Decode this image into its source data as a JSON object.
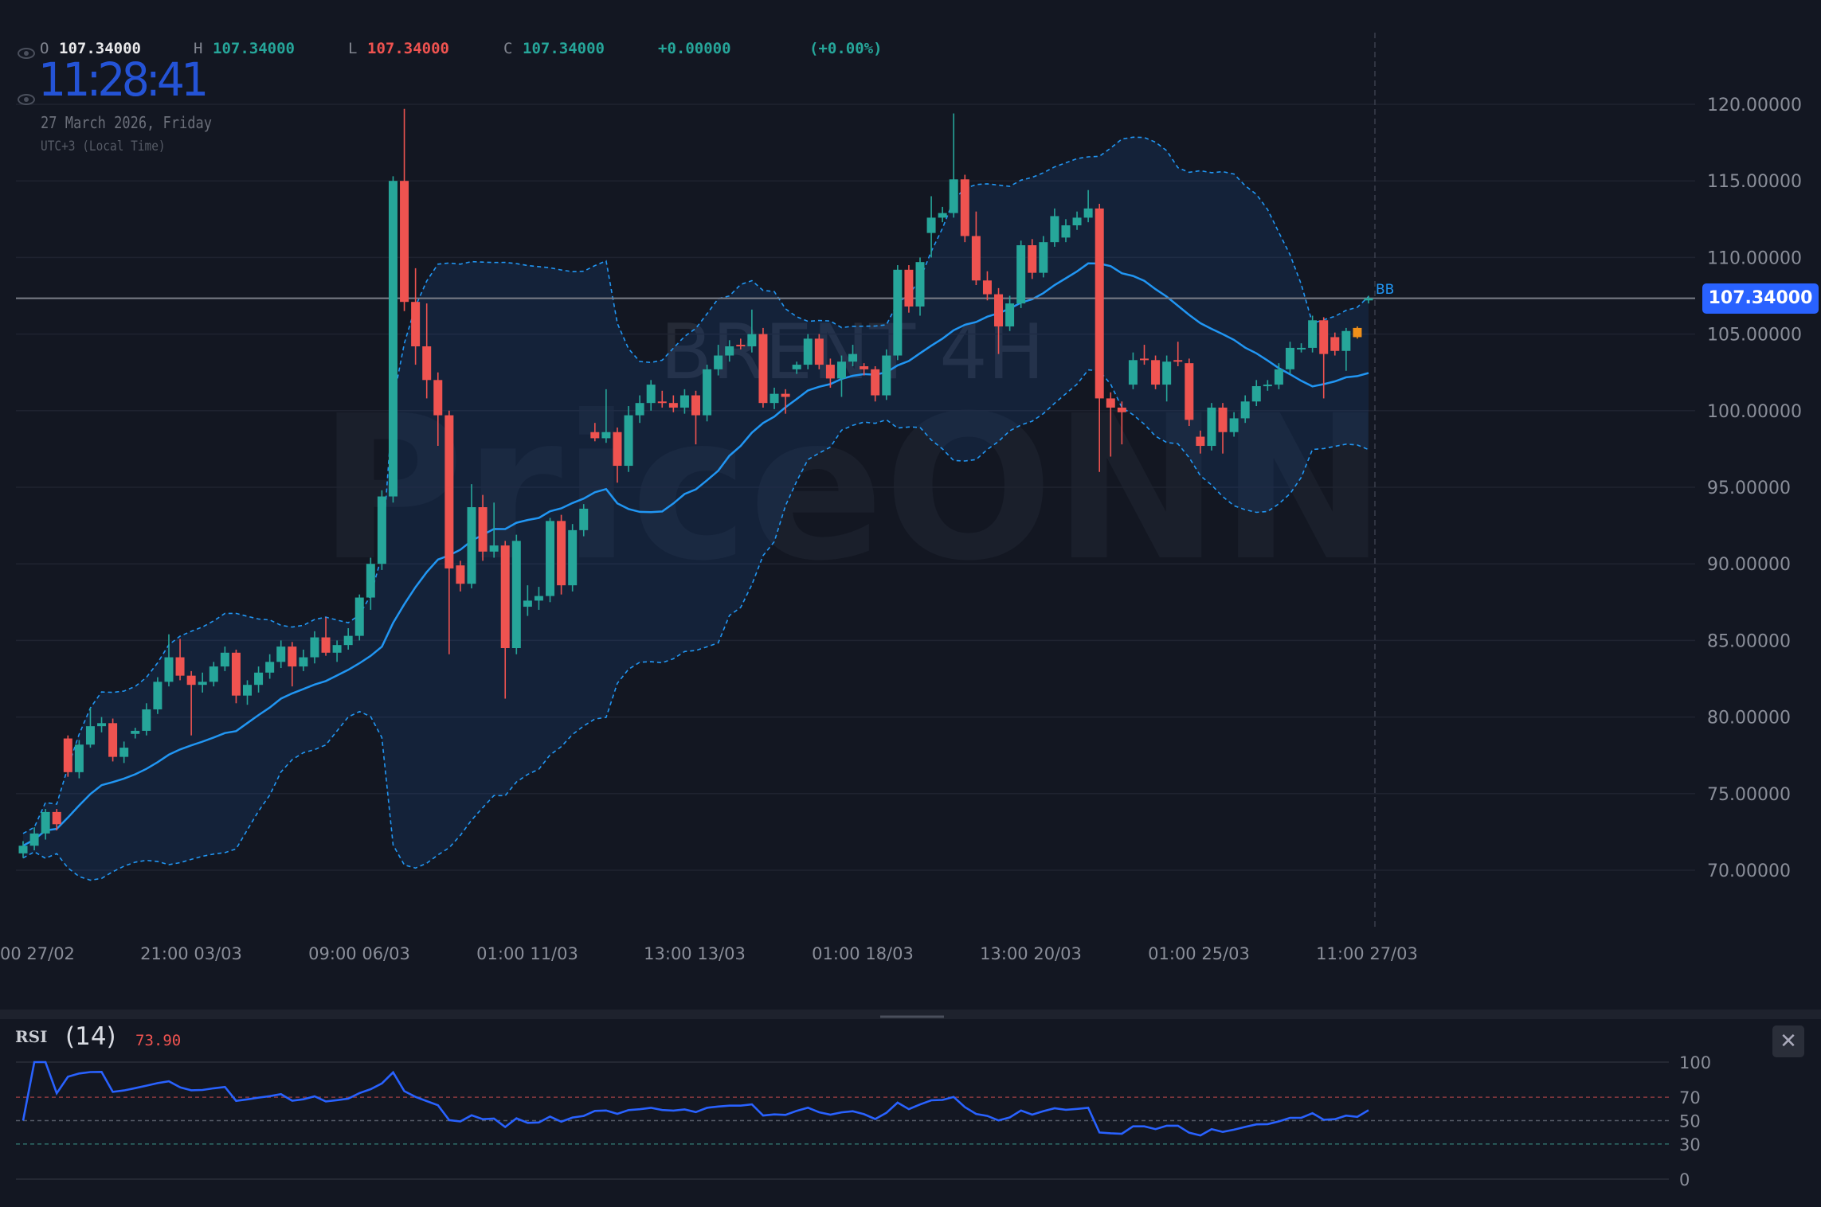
{
  "header": {
    "open_label": "O",
    "open": "107.34000",
    "high_label": "H",
    "high": "107.34000",
    "low_label": "L",
    "low": "107.34000",
    "close_label": "C",
    "close": "107.34000",
    "change": "+0.00000",
    "change_pct": "(+0.00%)",
    "clock": "11:28:41",
    "date": "27 March 2026, Friday",
    "timezone": "UTC+3 (Local Time)",
    "icons": [
      "eye-icon",
      "eye-icon"
    ]
  },
  "watermark": {
    "symbol": "BRENT 4H",
    "brand": "PriceONN"
  },
  "colors": {
    "up": "#26a69a",
    "down": "#ef5350",
    "highlight": "#f0901a",
    "bb": "#2196f3",
    "accent": "#2962ff",
    "rsi": "#2962ff",
    "background": "#131722"
  },
  "price_axis": {
    "ticks": [
      "120.00000",
      "115.00000",
      "110.00000",
      "105.00000",
      "100.00000",
      "95.00000",
      "90.00000",
      "85.00000",
      "80.00000",
      "75.00000",
      "70.00000"
    ],
    "current_price": "107.34000",
    "ylim": [
      65,
      120
    ]
  },
  "time_axis": {
    "ticks": [
      "00 27/02",
      "21:00 03/03",
      "09:00 06/03",
      "01:00 11/03",
      "13:00 13/03",
      "01:00 18/03",
      "13:00 20/03",
      "01:00 25/03",
      "11:00 27/03"
    ]
  },
  "indicator_label": "BB",
  "highlight_candle": 119,
  "candles": [
    [
      71.1,
      71.9,
      70.8,
      71.6
    ],
    [
      71.6,
      72.8,
      71.3,
      72.4
    ],
    [
      72.4,
      74.0,
      72.0,
      73.8
    ],
    [
      73.8,
      74.0,
      72.6,
      73.0
    ],
    [
      78.6,
      78.8,
      76.1,
      76.4
    ],
    [
      76.4,
      78.5,
      76.0,
      78.2
    ],
    [
      78.2,
      80.6,
      78.0,
      79.4
    ],
    [
      79.4,
      80.0,
      79.0,
      79.6
    ],
    [
      79.6,
      79.9,
      77.1,
      77.4
    ],
    [
      77.4,
      78.4,
      77.0,
      78.0
    ],
    [
      78.9,
      79.3,
      78.6,
      79.1
    ],
    [
      79.1,
      80.9,
      78.8,
      80.5
    ],
    [
      80.5,
      82.6,
      80.2,
      82.3
    ],
    [
      82.3,
      85.4,
      82.0,
      83.9
    ],
    [
      83.9,
      85.1,
      82.4,
      82.7
    ],
    [
      82.7,
      83.0,
      78.8,
      82.1
    ],
    [
      82.1,
      82.9,
      81.6,
      82.3
    ],
    [
      82.3,
      83.6,
      82.0,
      83.3
    ],
    [
      83.3,
      84.6,
      83.0,
      84.2
    ],
    [
      84.2,
      84.4,
      80.9,
      81.4
    ],
    [
      81.4,
      82.4,
      80.8,
      82.1
    ],
    [
      82.1,
      83.3,
      81.6,
      82.9
    ],
    [
      82.9,
      84.1,
      82.5,
      83.6
    ],
    [
      83.6,
      85.0,
      83.2,
      84.6
    ],
    [
      84.6,
      84.9,
      82.0,
      83.3
    ],
    [
      83.3,
      84.4,
      83.0,
      83.9
    ],
    [
      83.9,
      85.6,
      83.5,
      85.2
    ],
    [
      85.2,
      86.5,
      84.0,
      84.2
    ],
    [
      84.2,
      85.0,
      83.6,
      84.7
    ],
    [
      84.7,
      85.8,
      84.4,
      85.3
    ],
    [
      85.3,
      88.0,
      85.0,
      87.8
    ],
    [
      87.8,
      90.4,
      87.0,
      90.0
    ],
    [
      90.0,
      94.8,
      89.6,
      94.4
    ],
    [
      94.4,
      115.3,
      94.0,
      115.0
    ],
    [
      115.0,
      119.7,
      106.5,
      107.1
    ],
    [
      107.1,
      109.3,
      103.0,
      104.2
    ],
    [
      104.2,
      107.0,
      100.8,
      102.0
    ],
    [
      102.0,
      102.5,
      97.7,
      99.7
    ],
    [
      99.7,
      100.0,
      84.1,
      89.7
    ],
    [
      89.9,
      90.2,
      88.2,
      88.7
    ],
    [
      88.7,
      95.2,
      88.4,
      93.7
    ],
    [
      93.7,
      94.5,
      90.2,
      90.8
    ],
    [
      90.8,
      94.0,
      90.4,
      91.2
    ],
    [
      91.2,
      91.5,
      81.2,
      84.5
    ],
    [
      84.5,
      91.9,
      84.1,
      91.5
    ],
    [
      87.2,
      88.6,
      86.6,
      87.6
    ],
    [
      87.6,
      88.5,
      87.0,
      87.9
    ],
    [
      87.9,
      93.0,
      87.5,
      92.8
    ],
    [
      92.8,
      93.2,
      88.0,
      88.6
    ],
    [
      88.6,
      92.6,
      88.2,
      92.2
    ],
    [
      92.2,
      93.9,
      91.8,
      93.6
    ],
    [
      98.6,
      99.2,
      98.0,
      98.2
    ],
    [
      98.2,
      101.4,
      97.9,
      98.6
    ],
    [
      98.6,
      98.9,
      95.3,
      96.4
    ],
    [
      96.4,
      100.3,
      96.0,
      99.7
    ],
    [
      99.7,
      101.0,
      99.2,
      100.5
    ],
    [
      100.5,
      102.0,
      100.0,
      101.7
    ],
    [
      100.6,
      101.3,
      100.2,
      100.5
    ],
    [
      100.5,
      101.0,
      99.9,
      100.2
    ],
    [
      100.2,
      101.4,
      99.8,
      101.0
    ],
    [
      101.0,
      101.3,
      97.8,
      99.7
    ],
    [
      99.7,
      103.0,
      99.3,
      102.7
    ],
    [
      102.7,
      104.3,
      102.3,
      103.6
    ],
    [
      103.6,
      104.6,
      103.2,
      104.2
    ],
    [
      104.3,
      104.7,
      104.0,
      104.2
    ],
    [
      104.2,
      106.6,
      103.8,
      105.0
    ],
    [
      105.0,
      105.4,
      100.2,
      100.5
    ],
    [
      100.5,
      101.5,
      100.1,
      101.1
    ],
    [
      101.1,
      101.4,
      99.8,
      100.9
    ],
    [
      102.7,
      103.2,
      102.4,
      103.0
    ],
    [
      103.0,
      105.0,
      102.7,
      104.7
    ],
    [
      104.7,
      105.0,
      102.7,
      103.0
    ],
    [
      103.0,
      103.4,
      101.5,
      102.1
    ],
    [
      102.1,
      103.6,
      100.9,
      103.2
    ],
    [
      103.2,
      104.3,
      102.9,
      103.7
    ],
    [
      102.9,
      103.1,
      102.3,
      102.7
    ],
    [
      102.7,
      102.9,
      100.6,
      101.0
    ],
    [
      101.0,
      104.0,
      100.7,
      103.6
    ],
    [
      103.6,
      109.5,
      103.3,
      109.2
    ],
    [
      109.2,
      109.5,
      106.4,
      106.8
    ],
    [
      106.8,
      110.0,
      106.2,
      109.7
    ],
    [
      111.6,
      114.0,
      110.0,
      112.6
    ],
    [
      112.6,
      113.3,
      112.3,
      112.9
    ],
    [
      112.9,
      119.4,
      112.6,
      115.1
    ],
    [
      115.1,
      115.4,
      111.0,
      111.4
    ],
    [
      111.4,
      113.0,
      108.2,
      108.5
    ],
    [
      108.5,
      109.1,
      107.2,
      107.6
    ],
    [
      107.6,
      108.0,
      103.7,
      105.5
    ],
    [
      105.5,
      107.5,
      105.2,
      107.0
    ],
    [
      107.0,
      111.1,
      106.7,
      110.8
    ],
    [
      110.8,
      111.2,
      108.6,
      109.0
    ],
    [
      109.0,
      111.4,
      108.7,
      111.0
    ],
    [
      111.0,
      113.2,
      110.7,
      112.7
    ],
    [
      111.3,
      112.5,
      111.0,
      112.1
    ],
    [
      112.1,
      113.0,
      111.8,
      112.6
    ],
    [
      112.6,
      114.4,
      112.3,
      113.2
    ],
    [
      113.2,
      113.5,
      96.0,
      100.8
    ],
    [
      100.8,
      101.2,
      97.0,
      100.2
    ],
    [
      100.2,
      100.6,
      97.8,
      99.9
    ],
    [
      101.7,
      103.8,
      101.4,
      103.3
    ],
    [
      103.4,
      104.3,
      103.0,
      103.3
    ],
    [
      103.3,
      103.6,
      101.4,
      101.7
    ],
    [
      101.7,
      103.6,
      100.6,
      103.2
    ],
    [
      103.3,
      104.5,
      102.9,
      103.2
    ],
    [
      103.1,
      103.4,
      99.0,
      99.4
    ],
    [
      98.3,
      98.7,
      97.2,
      97.7
    ],
    [
      97.7,
      100.5,
      97.4,
      100.2
    ],
    [
      100.2,
      100.5,
      97.2,
      98.6
    ],
    [
      98.6,
      99.9,
      98.3,
      99.5
    ],
    [
      99.5,
      101.0,
      99.2,
      100.6
    ],
    [
      100.6,
      102.0,
      100.3,
      101.6
    ],
    [
      101.6,
      102.0,
      101.3,
      101.7
    ],
    [
      101.7,
      103.1,
      101.4,
      102.7
    ],
    [
      102.7,
      104.5,
      102.4,
      104.1
    ],
    [
      104.1,
      104.4,
      103.8,
      104.1
    ],
    [
      104.1,
      106.2,
      103.8,
      105.9
    ],
    [
      105.9,
      106.1,
      100.8,
      103.7
    ],
    [
      104.8,
      105.1,
      103.6,
      103.9
    ],
    [
      103.9,
      105.4,
      102.6,
      105.2
    ],
    [
      105.4,
      105.5,
      104.7,
      104.8
    ],
    [
      107.2,
      107.5,
      107.0,
      107.34
    ]
  ],
  "rsi": {
    "name": "RSI",
    "period": "(14)",
    "value": "73.90",
    "levels": [
      "100",
      "70",
      "50",
      "30",
      "0"
    ]
  }
}
